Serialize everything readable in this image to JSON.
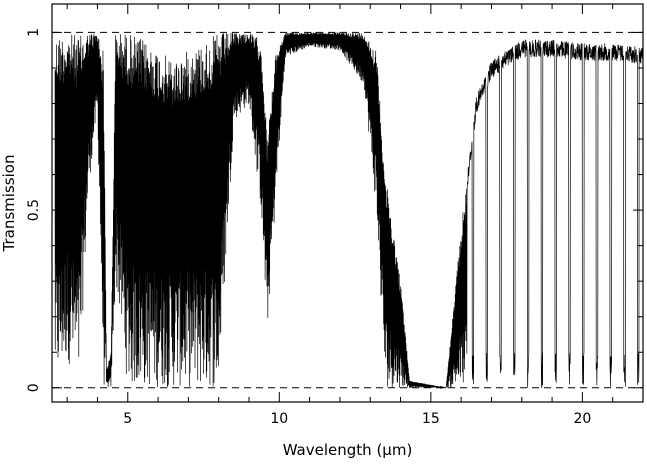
{
  "chart_data": {
    "type": "line",
    "title": "",
    "xlabel": "Wavelength (μm)",
    "ylabel": "Transmission",
    "xlim": [
      2.5,
      22
    ],
    "ylim": [
      -0.04,
      1.08
    ],
    "xticks": [
      5,
      10,
      15,
      20
    ],
    "xtick_labels": [
      "5",
      "10",
      "15",
      "20"
    ],
    "yticks": [
      0,
      0.5,
      1
    ],
    "ytick_labels": [
      "0",
      "0.5",
      "1"
    ],
    "reference_lines": [
      {
        "y": 1,
        "style": "dashed"
      },
      {
        "y": 0,
        "style": "dashed"
      }
    ],
    "grid": false,
    "legend": "none",
    "line_color": "#000000",
    "series": [
      {
        "envelope": [
          {
            "x": 2.6,
            "low": 0.0,
            "high": 0.99
          },
          {
            "x": 3.0,
            "low": 0.08,
            "high": 1.0
          },
          {
            "x": 3.4,
            "low": 0.0,
            "high": 0.99
          },
          {
            "x": 3.7,
            "low": 0.55,
            "high": 1.0
          },
          {
            "x": 4.0,
            "low": 0.78,
            "high": 1.0
          },
          {
            "x": 4.2,
            "low": 0.0,
            "high": 0.95
          },
          {
            "x": 4.3,
            "low": 0.0,
            "high": 0.05
          },
          {
            "x": 4.45,
            "low": 0.0,
            "high": 0.1
          },
          {
            "x": 4.6,
            "low": 0.3,
            "high": 1.0
          },
          {
            "x": 5.0,
            "low": 0.0,
            "high": 1.0
          },
          {
            "x": 5.5,
            "low": 0.0,
            "high": 0.98
          },
          {
            "x": 6.0,
            "low": 0.0,
            "high": 0.95
          },
          {
            "x": 6.5,
            "low": 0.0,
            "high": 0.92
          },
          {
            "x": 7.0,
            "low": 0.0,
            "high": 0.95
          },
          {
            "x": 7.5,
            "low": 0.0,
            "high": 0.97
          },
          {
            "x": 8.0,
            "low": 0.0,
            "high": 1.0
          },
          {
            "x": 8.5,
            "low": 0.75,
            "high": 1.0
          },
          {
            "x": 9.0,
            "low": 0.8,
            "high": 1.0
          },
          {
            "x": 9.4,
            "low": 0.5,
            "high": 0.98
          },
          {
            "x": 9.6,
            "low": 0.15,
            "high": 0.7
          },
          {
            "x": 9.9,
            "low": 0.55,
            "high": 0.95
          },
          {
            "x": 10.2,
            "low": 0.93,
            "high": 1.0
          },
          {
            "x": 11.0,
            "low": 0.96,
            "high": 1.0
          },
          {
            "x": 12.0,
            "low": 0.95,
            "high": 1.0
          },
          {
            "x": 12.8,
            "low": 0.85,
            "high": 1.0
          },
          {
            "x": 13.2,
            "low": 0.5,
            "high": 0.95
          },
          {
            "x": 13.5,
            "low": 0.0,
            "high": 0.6
          },
          {
            "x": 14.0,
            "low": 0.0,
            "high": 0.3
          },
          {
            "x": 14.3,
            "low": 0.0,
            "high": 0.02
          },
          {
            "x": 15.5,
            "low": 0.0,
            "high": 0.0
          },
          {
            "x": 16.0,
            "low": 0.0,
            "high": 0.45
          },
          {
            "x": 16.5,
            "low": 0.0,
            "high": 0.82
          },
          {
            "x": 17.0,
            "low": 0.0,
            "high": 0.92
          },
          {
            "x": 18.0,
            "low": 0.0,
            "high": 0.98
          },
          {
            "x": 19.0,
            "low": 0.0,
            "high": 0.98
          },
          {
            "x": 20.0,
            "low": 0.0,
            "high": 0.97
          },
          {
            "x": 21.0,
            "low": 0.0,
            "high": 0.97
          },
          {
            "x": 22.0,
            "low": 0.0,
            "high": 0.96
          }
        ]
      }
    ]
  }
}
